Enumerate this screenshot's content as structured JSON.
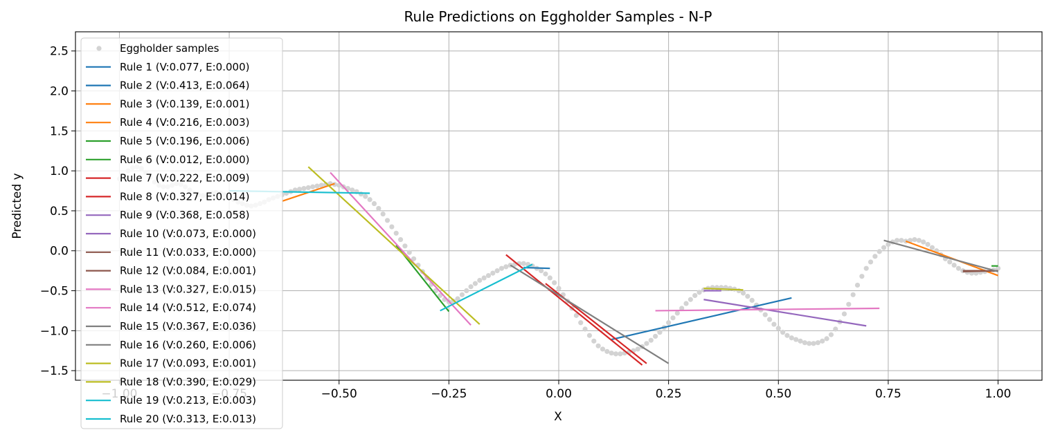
{
  "chart_data": {
    "type": "line",
    "title": "Rule Predictions on Eggholder Samples - N-P",
    "xlabel": "X",
    "ylabel": "Predicted y",
    "xlim": [
      -1.1,
      1.1
    ],
    "ylim": [
      -1.62,
      2.74
    ],
    "xticks": [
      -1.0,
      -0.75,
      -0.5,
      -0.25,
      0.0,
      0.25,
      0.5,
      0.75,
      1.0
    ],
    "xtick_labels": [
      "−1.00",
      "−0.75",
      "−0.50",
      "−0.25",
      "0.00",
      "0.25",
      "0.50",
      "0.75",
      "1.00"
    ],
    "yticks": [
      -1.5,
      -1.0,
      -0.5,
      0.0,
      0.5,
      1.0,
      1.5,
      2.0,
      2.5
    ],
    "ytick_labels": [
      "−1.5",
      "−1.0",
      "−0.5",
      "0.0",
      "0.5",
      "1.0",
      "1.5",
      "2.0",
      "2.5"
    ],
    "grid": true,
    "legend_position": "upper-left",
    "samples": {
      "name": "Eggholder samples",
      "color": "#d3d3d3",
      "points": [
        [
          -1.0,
          0.9
        ],
        [
          -0.99,
          0.95
        ],
        [
          -0.98,
          1.0
        ],
        [
          -0.97,
          1.04
        ],
        [
          -0.96,
          1.05
        ],
        [
          -0.95,
          1.03
        ],
        [
          -0.94,
          0.98
        ],
        [
          -0.93,
          0.92
        ],
        [
          -0.92,
          0.86
        ],
        [
          -0.91,
          0.82
        ],
        [
          -0.9,
          0.8
        ],
        [
          -0.89,
          0.8
        ],
        [
          -0.88,
          0.82
        ],
        [
          -0.87,
          0.84
        ],
        [
          -0.86,
          0.83
        ],
        [
          -0.85,
          0.8
        ],
        [
          -0.84,
          0.76
        ],
        [
          -0.83,
          0.72
        ],
        [
          -0.82,
          0.7
        ],
        [
          -0.81,
          0.69
        ],
        [
          -0.8,
          0.7
        ],
        [
          -0.79,
          0.72
        ],
        [
          -0.78,
          0.73
        ],
        [
          -0.77,
          0.72
        ],
        [
          -0.76,
          0.7
        ],
        [
          -0.75,
          0.67
        ],
        [
          -0.74,
          0.64
        ],
        [
          -0.73,
          0.61
        ],
        [
          -0.72,
          0.59
        ],
        [
          -0.71,
          0.57
        ],
        [
          -0.7,
          0.56
        ],
        [
          -0.69,
          0.57
        ],
        [
          -0.68,
          0.59
        ],
        [
          -0.67,
          0.61
        ],
        [
          -0.66,
          0.64
        ],
        [
          -0.65,
          0.66
        ],
        [
          -0.64,
          0.68
        ],
        [
          -0.63,
          0.7
        ],
        [
          -0.62,
          0.72
        ],
        [
          -0.61,
          0.74
        ],
        [
          -0.6,
          0.76
        ],
        [
          -0.59,
          0.77
        ],
        [
          -0.58,
          0.78
        ],
        [
          -0.57,
          0.79
        ],
        [
          -0.56,
          0.8
        ],
        [
          -0.55,
          0.81
        ],
        [
          -0.54,
          0.82
        ],
        [
          -0.53,
          0.83
        ],
        [
          -0.52,
          0.84
        ],
        [
          -0.51,
          0.83
        ],
        [
          -0.5,
          0.82
        ],
        [
          -0.49,
          0.8
        ],
        [
          -0.48,
          0.78
        ],
        [
          -0.47,
          0.76
        ],
        [
          -0.46,
          0.74
        ],
        [
          -0.45,
          0.71
        ],
        [
          -0.44,
          0.68
        ],
        [
          -0.43,
          0.64
        ],
        [
          -0.42,
          0.59
        ],
        [
          -0.41,
          0.53
        ],
        [
          -0.4,
          0.46
        ],
        [
          -0.39,
          0.38
        ],
        [
          -0.38,
          0.3
        ],
        [
          -0.37,
          0.22
        ],
        [
          -0.36,
          0.14
        ],
        [
          -0.35,
          0.06
        ],
        [
          -0.34,
          -0.02
        ],
        [
          -0.33,
          -0.1
        ],
        [
          -0.32,
          -0.18
        ],
        [
          -0.31,
          -0.26
        ],
        [
          -0.3,
          -0.34
        ],
        [
          -0.29,
          -0.42
        ],
        [
          -0.28,
          -0.5
        ],
        [
          -0.27,
          -0.56
        ],
        [
          -0.26,
          -0.61
        ],
        [
          -0.25,
          -0.64
        ],
        [
          -0.24,
          -0.63
        ],
        [
          -0.23,
          -0.6
        ],
        [
          -0.22,
          -0.55
        ],
        [
          -0.21,
          -0.5
        ],
        [
          -0.2,
          -0.45
        ],
        [
          -0.19,
          -0.41
        ],
        [
          -0.18,
          -0.37
        ],
        [
          -0.17,
          -0.34
        ],
        [
          -0.16,
          -0.31
        ],
        [
          -0.15,
          -0.28
        ],
        [
          -0.14,
          -0.25
        ],
        [
          -0.13,
          -0.22
        ],
        [
          -0.12,
          -0.2
        ],
        [
          -0.11,
          -0.18
        ],
        [
          -0.1,
          -0.17
        ],
        [
          -0.09,
          -0.16
        ],
        [
          -0.08,
          -0.16
        ],
        [
          -0.07,
          -0.17
        ],
        [
          -0.06,
          -0.19
        ],
        [
          -0.05,
          -0.22
        ],
        [
          -0.04,
          -0.25
        ],
        [
          -0.03,
          -0.29
        ],
        [
          -0.02,
          -0.34
        ],
        [
          -0.01,
          -0.4
        ],
        [
          0.0,
          -0.47
        ],
        [
          0.01,
          -0.55
        ],
        [
          0.02,
          -0.63
        ],
        [
          0.03,
          -0.72
        ],
        [
          0.04,
          -0.81
        ],
        [
          0.05,
          -0.9
        ],
        [
          0.06,
          -0.98
        ],
        [
          0.07,
          -1.06
        ],
        [
          0.08,
          -1.13
        ],
        [
          0.09,
          -1.19
        ],
        [
          0.1,
          -1.23
        ],
        [
          0.11,
          -1.26
        ],
        [
          0.12,
          -1.28
        ],
        [
          0.13,
          -1.29
        ],
        [
          0.14,
          -1.29
        ],
        [
          0.15,
          -1.28
        ],
        [
          0.16,
          -1.27
        ],
        [
          0.17,
          -1.25
        ],
        [
          0.18,
          -1.23
        ],
        [
          0.19,
          -1.2
        ],
        [
          0.2,
          -1.16
        ],
        [
          0.21,
          -1.12
        ],
        [
          0.22,
          -1.07
        ],
        [
          0.23,
          -1.02
        ],
        [
          0.24,
          -0.96
        ],
        [
          0.25,
          -0.9
        ],
        [
          0.26,
          -0.84
        ],
        [
          0.27,
          -0.78
        ],
        [
          0.28,
          -0.72
        ],
        [
          0.29,
          -0.66
        ],
        [
          0.3,
          -0.61
        ],
        [
          0.31,
          -0.56
        ],
        [
          0.32,
          -0.52
        ],
        [
          0.33,
          -0.49
        ],
        [
          0.34,
          -0.47
        ],
        [
          0.35,
          -0.46
        ],
        [
          0.36,
          -0.46
        ],
        [
          0.37,
          -0.46
        ],
        [
          0.38,
          -0.46
        ],
        [
          0.39,
          -0.47
        ],
        [
          0.4,
          -0.48
        ],
        [
          0.41,
          -0.5
        ],
        [
          0.42,
          -0.53
        ],
        [
          0.43,
          -0.57
        ],
        [
          0.44,
          -0.62
        ],
        [
          0.45,
          -0.68
        ],
        [
          0.46,
          -0.74
        ],
        [
          0.47,
          -0.8
        ],
        [
          0.48,
          -0.86
        ],
        [
          0.49,
          -0.92
        ],
        [
          0.5,
          -0.97
        ],
        [
          0.51,
          -1.02
        ],
        [
          0.52,
          -1.06
        ],
        [
          0.53,
          -1.09
        ],
        [
          0.54,
          -1.11
        ],
        [
          0.55,
          -1.13
        ],
        [
          0.56,
          -1.15
        ],
        [
          0.57,
          -1.16
        ],
        [
          0.58,
          -1.16
        ],
        [
          0.59,
          -1.15
        ],
        [
          0.6,
          -1.13
        ],
        [
          0.61,
          -1.1
        ],
        [
          0.62,
          -1.05
        ],
        [
          0.63,
          -0.98
        ],
        [
          0.64,
          -0.89
        ],
        [
          0.65,
          -0.79
        ],
        [
          0.66,
          -0.67
        ],
        [
          0.67,
          -0.55
        ],
        [
          0.68,
          -0.43
        ],
        [
          0.69,
          -0.32
        ],
        [
          0.7,
          -0.22
        ],
        [
          0.71,
          -0.14
        ],
        [
          0.72,
          -0.07
        ],
        [
          0.73,
          -0.01
        ],
        [
          0.74,
          0.04
        ],
        [
          0.75,
          0.08
        ],
        [
          0.76,
          0.11
        ],
        [
          0.77,
          0.13
        ],
        [
          0.78,
          0.13
        ],
        [
          0.79,
          0.12
        ],
        [
          0.8,
          0.13
        ],
        [
          0.81,
          0.14
        ],
        [
          0.82,
          0.13
        ],
        [
          0.83,
          0.11
        ],
        [
          0.84,
          0.08
        ],
        [
          0.85,
          0.04
        ],
        [
          0.86,
          0.0
        ],
        [
          0.87,
          -0.05
        ],
        [
          0.88,
          -0.1
        ],
        [
          0.89,
          -0.14
        ],
        [
          0.9,
          -0.18
        ],
        [
          0.91,
          -0.22
        ],
        [
          0.92,
          -0.25
        ],
        [
          0.93,
          -0.27
        ],
        [
          0.94,
          -0.28
        ],
        [
          0.95,
          -0.28
        ],
        [
          0.96,
          -0.27
        ],
        [
          0.97,
          -0.26
        ],
        [
          0.98,
          -0.25
        ],
        [
          0.99,
          -0.24
        ],
        [
          1.0,
          -0.22
        ]
      ]
    },
    "series": [
      {
        "name": "Rule 1 (V:0.077, E:0.000)",
        "color": "#1f77b4",
        "x": [
          -0.08,
          -0.02
        ],
        "y": [
          -0.21,
          -0.22
        ]
      },
      {
        "name": "Rule 2 (V:0.413, E:0.064)",
        "color": "#1f77b4",
        "x": [
          0.12,
          0.53
        ],
        "y": [
          -1.11,
          -0.59
        ]
      },
      {
        "name": "Rule 3 (V:0.139, E:0.001)",
        "color": "#ff7f0e",
        "x": [
          -0.63,
          -0.51
        ],
        "y": [
          0.62,
          0.84
        ]
      },
      {
        "name": "Rule 4 (V:0.216, E:0.003)",
        "color": "#ff7f0e",
        "x": [
          0.79,
          1.0
        ],
        "y": [
          0.12,
          -0.31
        ]
      },
      {
        "name": "Rule 5 (V:0.196, E:0.006)",
        "color": "#2ca02c",
        "x": [
          -0.37,
          -0.25
        ],
        "y": [
          0.07,
          -0.76
        ]
      },
      {
        "name": "Rule 6 (V:0.012, E:0.000)",
        "color": "#2ca02c",
        "x": [
          0.985,
          1.0
        ],
        "y": [
          -0.19,
          -0.19
        ]
      },
      {
        "name": "Rule 7 (V:0.222, E:0.009)",
        "color": "#d62728",
        "x": [
          -0.12,
          0.19
        ],
        "y": [
          -0.05,
          -1.43
        ]
      },
      {
        "name": "Rule 8 (V:0.327, E:0.014)",
        "color": "#d62728",
        "x": [
          -0.03,
          0.2
        ],
        "y": [
          -0.41,
          -1.41
        ]
      },
      {
        "name": "Rule 9 (V:0.368, E:0.058)",
        "color": "#9467bd",
        "x": [
          0.33,
          0.7
        ],
        "y": [
          -0.61,
          -0.94
        ]
      },
      {
        "name": "Rule 10 (V:0.073, E:0.000)",
        "color": "#9467bd",
        "x": [
          0.33,
          0.37
        ],
        "y": [
          -0.5,
          -0.5
        ]
      },
      {
        "name": "Rule 11 (V:0.033, E:0.000)",
        "color": "#8c564b",
        "x": [
          0.92,
          0.97
        ],
        "y": [
          -0.25,
          -0.25
        ]
      },
      {
        "name": "Rule 12 (V:0.084, E:0.001)",
        "color": "#8c564b",
        "x": [
          0.92,
          1.0
        ],
        "y": [
          -0.26,
          -0.25
        ]
      },
      {
        "name": "Rule 13 (V:0.327, E:0.015)",
        "color": "#e377c2",
        "x": [
          -0.52,
          -0.2
        ],
        "y": [
          0.98,
          -0.93
        ]
      },
      {
        "name": "Rule 14 (V:0.512, E:0.074)",
        "color": "#e377c2",
        "x": [
          0.22,
          0.73
        ],
        "y": [
          -0.75,
          -0.72
        ]
      },
      {
        "name": "Rule 15 (V:0.367, E:0.036)",
        "color": "#7f7f7f",
        "x": [
          -0.11,
          0.25
        ],
        "y": [
          -0.18,
          -1.41
        ]
      },
      {
        "name": "Rule 16 (V:0.260, E:0.006)",
        "color": "#7f7f7f",
        "x": [
          0.74,
          1.0
        ],
        "y": [
          0.13,
          -0.26
        ]
      },
      {
        "name": "Rule 17 (V:0.093, E:0.001)",
        "color": "#bcbd22",
        "x": [
          0.33,
          0.42
        ],
        "y": [
          -0.47,
          -0.49
        ]
      },
      {
        "name": "Rule 18 (V:0.390, E:0.029)",
        "color": "#bcbd22",
        "x": [
          -0.57,
          -0.18
        ],
        "y": [
          1.05,
          -0.92
        ]
      },
      {
        "name": "Rule 19 (V:0.213, E:0.003)",
        "color": "#17becf",
        "x": [
          -0.27,
          -0.06
        ],
        "y": [
          -0.75,
          -0.17
        ]
      },
      {
        "name": "Rule 20 (V:0.313, E:0.013)",
        "color": "#17becf",
        "x": [
          -0.75,
          -0.43
        ],
        "y": [
          0.75,
          0.72
        ]
      }
    ]
  }
}
